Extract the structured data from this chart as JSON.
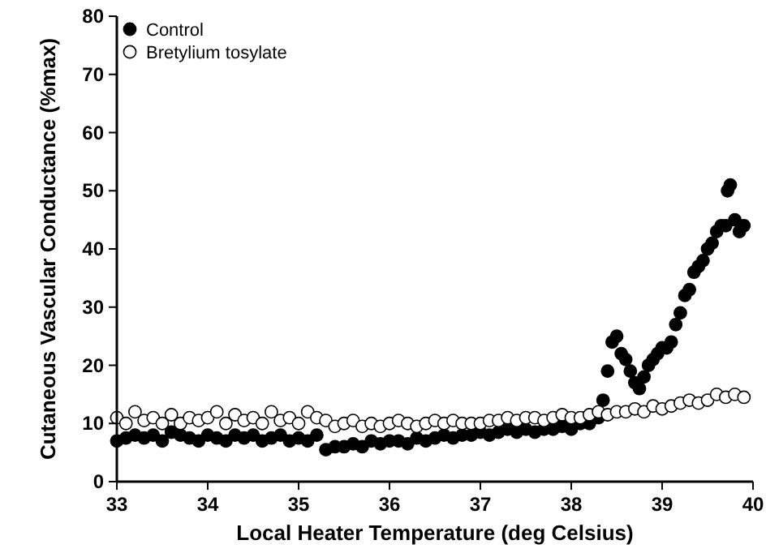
{
  "chart_data": {
    "type": "scatter",
    "xlabel": "Local Heater Temperature (deg Celsius)",
    "ylabel": "Cutaneous Vascular Conductance (%max)",
    "xlim": [
      33,
      40
    ],
    "ylim": [
      0,
      80
    ],
    "xticks": [
      33,
      34,
      35,
      36,
      37,
      38,
      39,
      40
    ],
    "yticks": [
      0,
      10,
      20,
      30,
      40,
      50,
      60,
      70,
      80
    ],
    "legend": "top left",
    "grid": false,
    "series": [
      {
        "name": "Control",
        "color": "#000000",
        "marker": "circle",
        "x": [
          33.0,
          33.1,
          33.2,
          33.3,
          33.4,
          33.5,
          33.6,
          33.7,
          33.8,
          33.9,
          34.0,
          34.1,
          34.2,
          34.3,
          34.4,
          34.5,
          34.6,
          34.7,
          34.8,
          34.9,
          35.0,
          35.1,
          35.2,
          35.3,
          35.4,
          35.5,
          35.6,
          35.7,
          35.8,
          35.9,
          36.0,
          36.1,
          36.2,
          36.3,
          36.4,
          36.5,
          36.6,
          36.7,
          36.8,
          36.9,
          37.0,
          37.1,
          37.2,
          37.3,
          37.4,
          37.5,
          37.6,
          37.7,
          37.8,
          37.9,
          38.0,
          38.1,
          38.2,
          38.3,
          38.35,
          38.4,
          38.45,
          38.5,
          38.55,
          38.6,
          38.65,
          38.7,
          38.75,
          38.8,
          38.85,
          38.9,
          38.95,
          39.0,
          39.05,
          39.1,
          39.15,
          39.2,
          39.25,
          39.3,
          39.35,
          39.4,
          39.45,
          39.5,
          39.55,
          39.6,
          39.65,
          39.7,
          39.72,
          39.75,
          39.8,
          39.85,
          39.9
        ],
        "values": [
          7,
          7.5,
          8,
          7.5,
          8,
          7,
          8.5,
          8,
          7.5,
          7,
          8,
          7.5,
          7,
          8,
          7.5,
          8,
          7,
          7.5,
          8,
          7,
          7.5,
          7,
          8,
          5.5,
          6,
          6,
          6.5,
          6,
          7,
          6.5,
          7,
          7,
          6.5,
          7.5,
          7,
          7.5,
          8,
          7.5,
          8,
          8,
          8.5,
          8,
          8.5,
          9,
          8.5,
          9,
          8.5,
          9,
          9,
          9.5,
          9,
          10,
          10,
          11,
          14,
          19,
          24,
          25,
          22,
          21,
          19,
          17,
          16,
          18,
          20,
          21,
          22,
          23,
          23,
          24,
          27,
          29,
          32,
          33,
          36,
          37,
          38,
          40,
          41,
          43,
          44,
          44,
          50,
          51,
          45,
          43,
          44
        ]
      },
      {
        "name": "Bretylium tosylate",
        "color": "#ffffff",
        "marker": "circle",
        "x": [
          33.0,
          33.1,
          33.2,
          33.3,
          33.4,
          33.5,
          33.6,
          33.7,
          33.8,
          33.9,
          34.0,
          34.1,
          34.2,
          34.3,
          34.4,
          34.5,
          34.6,
          34.7,
          34.8,
          34.9,
          35.0,
          35.1,
          35.2,
          35.3,
          35.4,
          35.5,
          35.6,
          35.7,
          35.8,
          35.9,
          36.0,
          36.1,
          36.2,
          36.3,
          36.4,
          36.5,
          36.6,
          36.7,
          36.8,
          36.9,
          37.0,
          37.1,
          37.2,
          37.3,
          37.4,
          37.5,
          37.6,
          37.7,
          37.8,
          37.9,
          38.0,
          38.1,
          38.2,
          38.3,
          38.4,
          38.5,
          38.6,
          38.7,
          38.8,
          38.9,
          39.0,
          39.1,
          39.2,
          39.3,
          39.4,
          39.5,
          39.6,
          39.7,
          39.8,
          39.9
        ],
        "values": [
          11,
          10,
          12,
          10.5,
          11,
          10,
          11.5,
          10,
          11,
          10.5,
          11,
          12,
          10,
          11.5,
          10.5,
          11,
          10,
          12,
          10.5,
          11,
          10,
          12,
          11,
          10.5,
          9.5,
          10,
          10.5,
          9.5,
          10,
          9.5,
          10,
          10.5,
          10,
          9.5,
          10,
          10.5,
          10,
          10.5,
          10,
          10,
          10,
          10.5,
          10.5,
          11,
          10.5,
          11,
          11,
          10.5,
          11,
          11.5,
          11,
          11,
          11.5,
          12,
          11.5,
          12,
          12,
          12.5,
          12,
          13,
          12.5,
          13,
          13.5,
          14,
          13.5,
          14,
          15,
          14.5,
          15,
          14.5
        ]
      }
    ]
  }
}
